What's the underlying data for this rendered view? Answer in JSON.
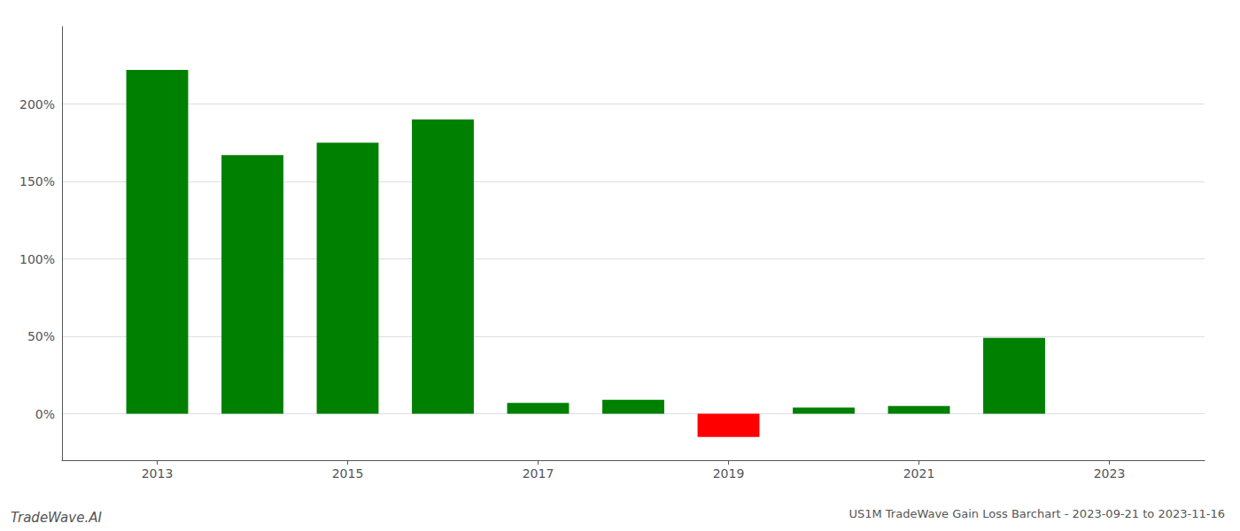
{
  "chart_data": {
    "type": "bar",
    "title": "US1M TradeWave Gain Loss Barchart - 2023-09-21 to 2023-11-16",
    "annotations": [
      "TradeWave.AI"
    ],
    "x": [
      2013,
      2014,
      2015,
      2016,
      2017,
      2018,
      2019,
      2020,
      2021,
      2022
    ],
    "values": [
      2.22,
      1.67,
      1.75,
      1.9,
      0.07,
      0.09,
      -0.15,
      0.04,
      0.05,
      0.49
    ],
    "colors": [
      "#008000",
      "#008000",
      "#008000",
      "#008000",
      "#008000",
      "#008000",
      "#ff0000",
      "#008000",
      "#008000",
      "#008000"
    ],
    "xlim": [
      2012.0,
      2024.0
    ],
    "xticks": [
      2013,
      2015,
      2017,
      2019,
      2021,
      2023
    ],
    "ylim": [
      -0.3,
      2.5
    ],
    "yticks": [
      {
        "value": 0.0,
        "label": "0%"
      },
      {
        "value": 0.5,
        "label": "50%"
      },
      {
        "value": 1.0,
        "label": "100%"
      },
      {
        "value": 1.5,
        "label": "150%"
      },
      {
        "value": 2.0,
        "label": "200%"
      }
    ],
    "grid": true
  }
}
